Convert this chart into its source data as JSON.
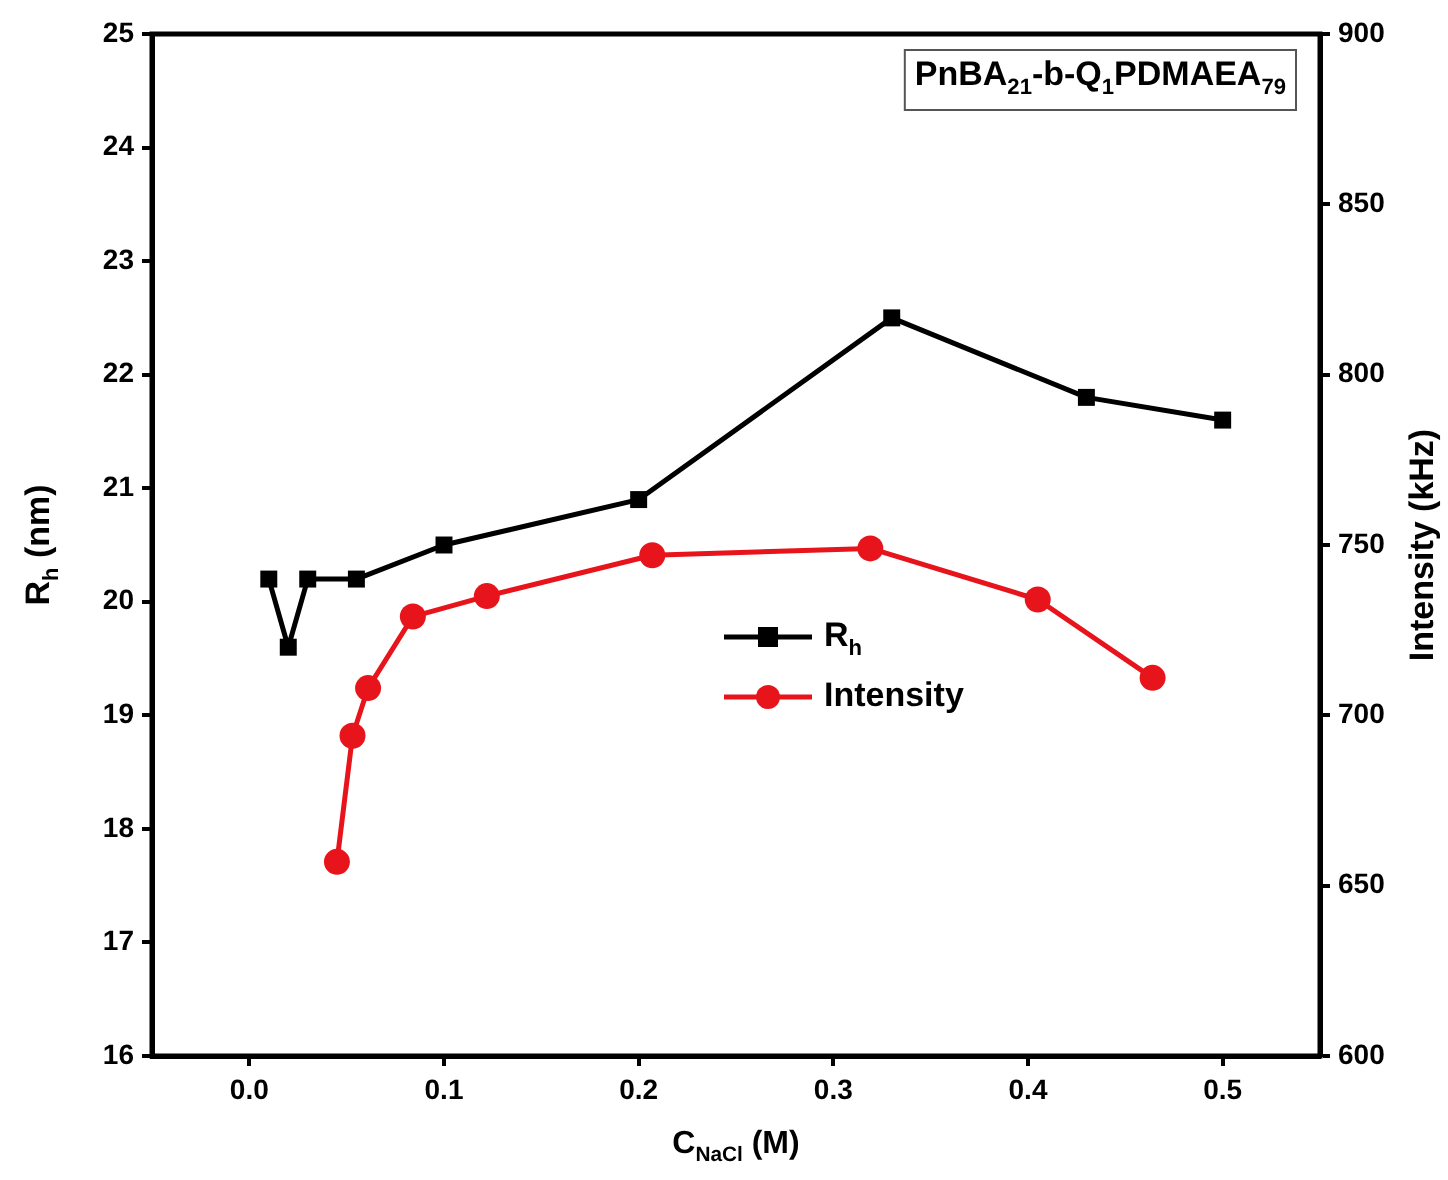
{
  "chart_data": {
    "type": "line",
    "title": "PnBA$_{21}$-b-Q$_{1}$PDMAEA$_{79}$",
    "xlabel": "C$_{NaCl}$ (M)",
    "ylabel": "R$_{h}$ (nm)",
    "y2label": "Intensity (kHz)",
    "xlim": [
      -0.05,
      0.55
    ],
    "xticks": [
      {
        "value": 0,
        "label": "0.0"
      },
      0.1,
      0.2,
      0.3,
      0.4,
      0.5
    ],
    "ylim": [
      16,
      25
    ],
    "yticks": [
      16,
      17,
      18,
      19,
      20,
      21,
      22,
      23,
      24,
      25
    ],
    "y2lim": [
      600,
      900
    ],
    "y2ticks": [
      600,
      650,
      700,
      750,
      800,
      850,
      900
    ],
    "grid": false,
    "legend": "center",
    "line_style": "solid",
    "series": [
      {
        "name": "R$_{h}$",
        "color": "#000000",
        "marker": "square",
        "x": [
          0.01,
          0.02,
          0.03,
          0.055,
          0.1,
          0.2,
          0.33,
          0.43,
          0.5
        ],
        "values": [
          20.2,
          19.6,
          20.2,
          20.2,
          20.5,
          20.9,
          22.5,
          21.8,
          21.6
        ]
      },
      {
        "name": "Intensity",
        "color": "#e8141c",
        "marker": "circle",
        "axis": "y2",
        "x": [
          0.045,
          0.053,
          0.061,
          0.084,
          0.122,
          0.207,
          0.319,
          0.405,
          0.464
        ],
        "values": [
          657,
          694,
          708,
          729,
          735,
          747,
          749,
          734,
          711
        ]
      }
    ]
  }
}
